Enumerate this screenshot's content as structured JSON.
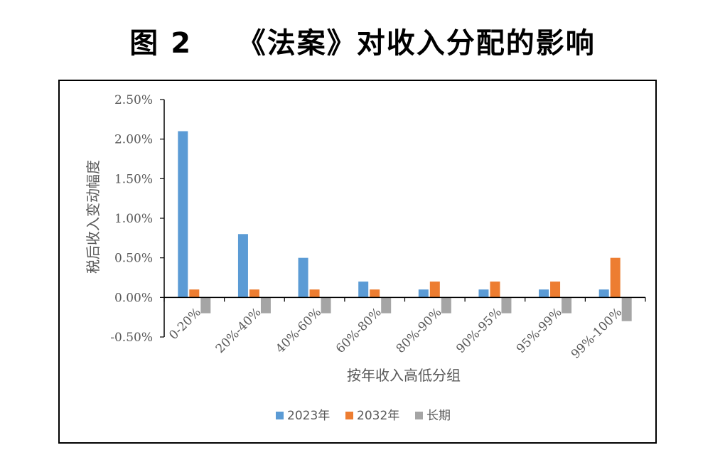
{
  "figure_title": "图 2    《法案》对收入分配的影响",
  "colors": {
    "s2023": "#5B9BD5",
    "s2032": "#ED7D31",
    "long": "#A5A5A5",
    "text": "#595959",
    "axis": "#000000"
  },
  "chart_data": {
    "type": "bar",
    "title": "",
    "xlabel": "按年收入高低分组",
    "ylabel": "税后收入变动幅度",
    "categories": [
      "0-20%",
      "20%-40%",
      "40%-60%",
      "60%-80%",
      "80%-90%",
      "90%-95%",
      "95%-99%",
      "99%-100%"
    ],
    "series": [
      {
        "name": "2023年",
        "values": [
          2.1,
          0.8,
          0.5,
          0.2,
          0.1,
          0.1,
          0.1,
          0.1
        ]
      },
      {
        "name": "2032年",
        "values": [
          0.1,
          0.1,
          0.1,
          0.1,
          0.2,
          0.2,
          0.2,
          0.5
        ]
      },
      {
        "name": "长期",
        "values": [
          -0.2,
          -0.2,
          -0.2,
          -0.2,
          -0.2,
          -0.2,
          -0.2,
          -0.3
        ]
      }
    ],
    "yticks": [
      "-0.50%",
      "0.00%",
      "0.50%",
      "1.00%",
      "1.50%",
      "2.00%",
      "2.50%"
    ],
    "ylim": [
      -0.5,
      2.5
    ],
    "unit": "%",
    "grid": false,
    "legend_position": "bottom"
  }
}
